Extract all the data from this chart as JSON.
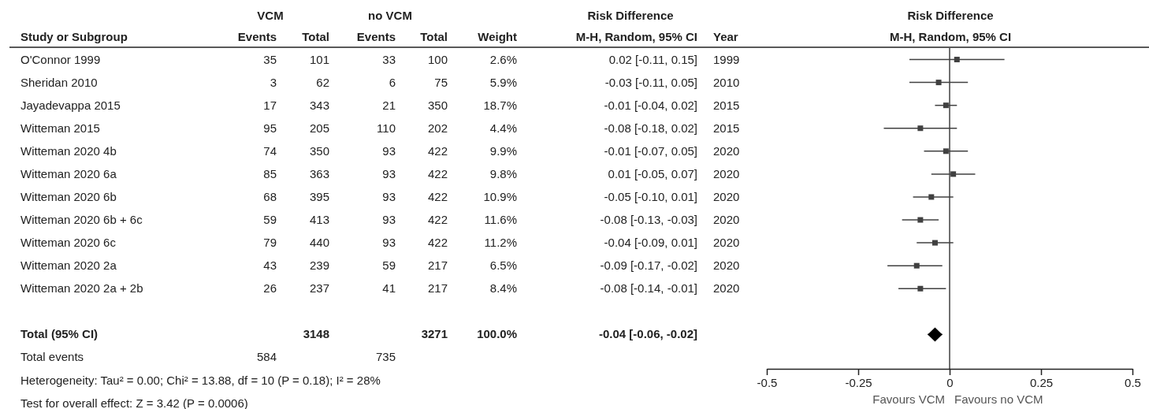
{
  "chart_data": [
    {
      "type": "other",
      "categories": [
        "Study or Subgroup",
        "Events",
        "Total",
        "Events",
        "Total",
        "Weight",
        "M-H, Random, 95% CI",
        "Year"
      ],
      "cell_labels": [
        [
          "O'Connor 1999",
          "35",
          "101",
          "33",
          "100",
          "2.6%",
          "0.02 [-0.11, 0.15]",
          "1999"
        ],
        [
          "Sheridan 2010",
          "3",
          "62",
          "6",
          "75",
          "5.9%",
          "-0.03 [-0.11, 0.05]",
          "2010"
        ],
        [
          "Jayadevappa 2015",
          "17",
          "343",
          "21",
          "350",
          "18.7%",
          "-0.01 [-0.04, 0.02]",
          "2015"
        ],
        [
          "Witteman 2015",
          "95",
          "205",
          "110",
          "202",
          "4.4%",
          "-0.08 [-0.18, 0.02]",
          "2015"
        ],
        [
          "Witteman 2020 4b",
          "74",
          "350",
          "93",
          "422",
          "9.9%",
          "-0.01 [-0.07, 0.05]",
          "2020"
        ],
        [
          "Witteman 2020 6a",
          "85",
          "363",
          "93",
          "422",
          "9.8%",
          "0.01 [-0.05, 0.07]",
          "2020"
        ],
        [
          "Witteman 2020 6b",
          "68",
          "395",
          "93",
          "422",
          "10.9%",
          "-0.05 [-0.10, 0.01]",
          "2020"
        ],
        [
          "Witteman 2020 6b + 6c",
          "59",
          "413",
          "93",
          "422",
          "11.6%",
          "-0.08 [-0.13, -0.03]",
          "2020"
        ],
        [
          "Witteman 2020 6c",
          "79",
          "440",
          "93",
          "422",
          "11.2%",
          "-0.04 [-0.09, 0.01]",
          "2020"
        ],
        [
          "Witteman 2020 2a",
          "43",
          "239",
          "59",
          "217",
          "6.5%",
          "-0.09 [-0.17, -0.02]",
          "2020"
        ],
        [
          "Witteman 2020 2a + 2b",
          "26",
          "237",
          "41",
          "217",
          "8.4%",
          "-0.08 [-0.14, -0.01]",
          "2020"
        ],
        [
          "Total (95% CI)",
          null,
          "3148",
          null,
          "3271",
          "100.0%",
          "-0.04 [-0.06, -0.02]",
          null
        ],
        [
          "Total events",
          "584",
          null,
          "735",
          null,
          null,
          null,
          null
        ]
      ],
      "annotations": [
        "VCM",
        "no VCM",
        "Risk Difference",
        "Heterogeneity: Tau² = 0.00; Chi² = 13.88, df = 10 (P = 0.18); I² = 28%",
        "Test for overall effect: Z = 3.42 (P = 0.0006)"
      ]
    },
    {
      "type": "scatter",
      "orientation": "horizontal",
      "title": "Risk Difference",
      "subtitle": "M-H, Random, 95% CI",
      "categories": [
        null,
        null,
        null,
        null,
        null,
        null,
        null,
        null,
        null,
        null,
        null,
        null,
        null,
        null
      ],
      "series": [
        {
          "marker": "square",
          "color": "#404040",
          "values": [
            0.02,
            -0.03,
            -0.01,
            -0.08,
            -0.01,
            0.01,
            -0.05,
            -0.08,
            -0.04,
            -0.09,
            -0.08,
            null,
            null,
            null
          ],
          "errors": [
            [
              -0.11,
              0.15
            ],
            [
              -0.11,
              0.05
            ],
            [
              -0.04,
              0.02
            ],
            [
              -0.18,
              0.02
            ],
            [
              -0.07,
              0.05
            ],
            [
              -0.05,
              0.07
            ],
            [
              -0.1,
              0.01
            ],
            [
              -0.13,
              -0.03
            ],
            [
              -0.09,
              0.01
            ],
            [
              -0.17,
              -0.02
            ],
            [
              -0.14,
              -0.01
            ],
            null,
            null,
            null
          ]
        },
        {
          "marker": "diamond",
          "color": "#000000",
          "values": [
            null,
            null,
            null,
            null,
            null,
            null,
            null,
            null,
            null,
            null,
            null,
            null,
            -0.04,
            null
          ],
          "errors": [
            null,
            null,
            null,
            null,
            null,
            null,
            null,
            null,
            null,
            null,
            null,
            null,
            [
              -0.06,
              -0.02
            ],
            null
          ]
        }
      ],
      "xlim": [
        -0.5,
        0.5
      ],
      "xticks": [
        -0.5,
        -0.25,
        0,
        0.25,
        0.5
      ],
      "tick_labels": "x",
      "ref_lines": [
        {
          "axis": "x",
          "value": 0
        }
      ],
      "annotations": [
        "Favours VCM",
        "Favours no VCM"
      ]
    }
  ]
}
